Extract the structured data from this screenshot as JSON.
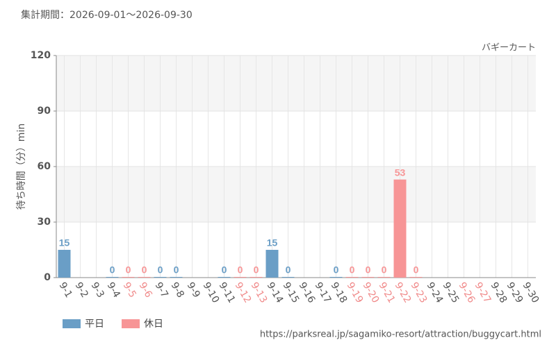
{
  "chart_data": {
    "type": "bar",
    "title": "集計期間：2026-09-01～2026-09-30",
    "subtitle": "バギーカート",
    "y_label": "待ち時間（分）min",
    "source": "https://parksreal.jp/sagamiko-resort/attraction/buggycart.html",
    "categories": [
      "9-1",
      "9-2",
      "9-3",
      "9-4",
      "9-5",
      "9-6",
      "9-7",
      "9-8",
      "9-9",
      "9-10",
      "9-11",
      "9-12",
      "9-13",
      "9-14",
      "9-15",
      "9-16",
      "9-17",
      "9-18",
      "9-19",
      "9-20",
      "9-21",
      "9-22",
      "9-23",
      "9-24",
      "9-25",
      "9-26",
      "9-27",
      "9-28",
      "9-29",
      "9-30"
    ],
    "tick_label_colors": [
      "#555",
      "#555",
      "#555",
      "#555",
      "#f08a8a",
      "#f08a8a",
      "#555",
      "#555",
      "#555",
      "#555",
      "#555",
      "#f08a8a",
      "#f08a8a",
      "#555",
      "#555",
      "#555",
      "#555",
      "#555",
      "#f08a8a",
      "#f08a8a",
      "#f08a8a",
      "#f08a8a",
      "#f08a8a",
      "#555",
      "#555",
      "#f08a8a",
      "#f08a8a",
      "#555",
      "#555",
      "#555"
    ],
    "series": [
      {
        "name": "平日",
        "color": "#6a9ec6",
        "values": [
          15,
          null,
          null,
          0,
          null,
          null,
          0,
          0,
          null,
          null,
          0,
          null,
          null,
          15,
          0,
          null,
          null,
          0,
          null,
          null,
          null,
          null,
          null,
          null,
          null,
          null,
          null,
          null,
          null,
          null
        ]
      },
      {
        "name": "休日",
        "color": "#f79596",
        "values": [
          null,
          null,
          null,
          null,
          0,
          0,
          null,
          null,
          null,
          null,
          null,
          0,
          0,
          null,
          null,
          null,
          null,
          null,
          0,
          0,
          0,
          53,
          0,
          null,
          null,
          null,
          null,
          null,
          null,
          null
        ]
      }
    ],
    "ylim": [
      0,
      120
    ],
    "yticks": [
      0,
      30,
      60,
      90,
      120
    ],
    "grid": true
  }
}
